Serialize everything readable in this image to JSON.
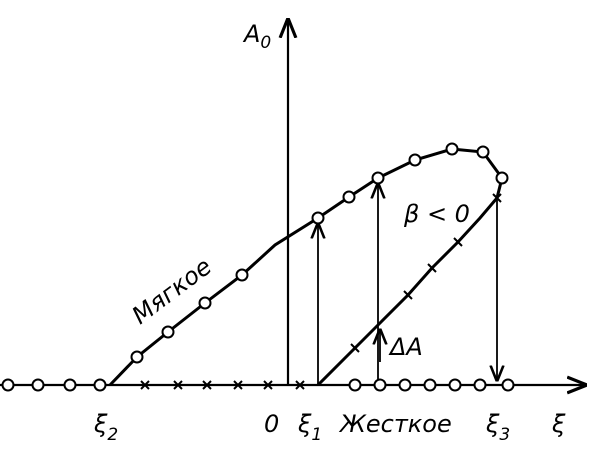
{
  "labels": {
    "amplitude_axis": {
      "text": "A",
      "sub": "0"
    },
    "soft": "Мягкое",
    "beta": "β < 0",
    "delta_a": "ΔA",
    "xi2": {
      "text": "ξ",
      "sub": "2"
    },
    "zero": "0",
    "xi1": {
      "text": "ξ",
      "sub": "1"
    },
    "hard": "Жесткое",
    "xi3": {
      "text": "ξ",
      "sub": "3"
    },
    "xi_axis": "ξ"
  }
}
